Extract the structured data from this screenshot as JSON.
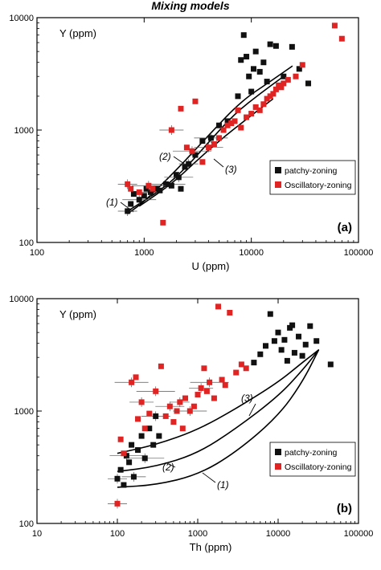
{
  "figure_title": "Mixing models",
  "colors": {
    "patchy": "#111111",
    "oscillatory": "#e02424",
    "curve": "#000000",
    "axis": "#000000"
  },
  "chart_data": [
    {
      "panel": "(a)",
      "type": "scatter",
      "title": "",
      "xlabel": "U (ppm)",
      "ylabel": "Y (ppm)",
      "xscale": "log",
      "yscale": "log",
      "xlim": [
        100,
        100000
      ],
      "ylim": [
        100,
        10000
      ],
      "xticks": [
        "100",
        "1000",
        "10000",
        "100000"
      ],
      "yticks": [
        "100",
        "1000",
        "10000"
      ],
      "legend_position": "right, lower-middle",
      "series": [
        {
          "name": "patchy-zoning",
          "marker": "square",
          "color": "#111111",
          "points": [
            [
              700,
              190
            ],
            [
              750,
              220
            ],
            [
              800,
              270
            ],
            [
              900,
              240
            ],
            [
              1000,
              260
            ],
            [
              1050,
              300
            ],
            [
              1150,
              280
            ],
            [
              1300,
              300
            ],
            [
              1400,
              290
            ],
            [
              1600,
              330
            ],
            [
              1800,
              320
            ],
            [
              2000,
              400
            ],
            [
              2100,
              380
            ],
            [
              2200,
              300
            ],
            [
              2400,
              470
            ],
            [
              2600,
              500
            ],
            [
              3000,
              600
            ],
            [
              3500,
              800
            ],
            [
              4200,
              850
            ],
            [
              5000,
              1100
            ],
            [
              6000,
              1200
            ],
            [
              7500,
              2000
            ],
            [
              8000,
              4200
            ],
            [
              8500,
              7000
            ],
            [
              9000,
              4500
            ],
            [
              9500,
              3000
            ],
            [
              10000,
              2200
            ],
            [
              10500,
              3500
            ],
            [
              11000,
              5000
            ],
            [
              12000,
              3300
            ],
            [
              13000,
              4000
            ],
            [
              14000,
              2700
            ],
            [
              15000,
              5800
            ],
            [
              17000,
              5600
            ],
            [
              20000,
              3000
            ],
            [
              24000,
              5500
            ],
            [
              28000,
              3500
            ],
            [
              34000,
              2600
            ]
          ]
        },
        {
          "name": "Oscillatory-zoning",
          "marker": "square",
          "color": "#e02424",
          "points": [
            [
              700,
              330
            ],
            [
              750,
              300
            ],
            [
              900,
              280
            ],
            [
              1100,
              320
            ],
            [
              1200,
              300
            ],
            [
              1500,
              150
            ],
            [
              1800,
              1000
            ],
            [
              2200,
              1550
            ],
            [
              2500,
              700
            ],
            [
              2800,
              650
            ],
            [
              3000,
              1800
            ],
            [
              3500,
              520
            ],
            [
              4000,
              700
            ],
            [
              4500,
              750
            ],
            [
              5000,
              850
            ],
            [
              5500,
              1000
            ],
            [
              6000,
              1100
            ],
            [
              6500,
              1150
            ],
            [
              7000,
              1200
            ],
            [
              7500,
              1500
            ],
            [
              8000,
              1050
            ],
            [
              9000,
              1300
            ],
            [
              10000,
              1400
            ],
            [
              11000,
              1600
            ],
            [
              12000,
              1500
            ],
            [
              13000,
              1700
            ],
            [
              14000,
              1900
            ],
            [
              15000,
              2000
            ],
            [
              16000,
              2100
            ],
            [
              17000,
              2300
            ],
            [
              18000,
              2500
            ],
            [
              19000,
              2400
            ],
            [
              20000,
              2600
            ],
            [
              22000,
              2800
            ],
            [
              26000,
              3000
            ],
            [
              30000,
              3800
            ],
            [
              60000,
              8500
            ],
            [
              70000,
              6500
            ]
          ]
        }
      ],
      "curves": [
        {
          "label": "(1)",
          "points": [
            [
              700,
              180
            ],
            [
              1000,
              230
            ],
            [
              2000,
              440
            ],
            [
              4000,
              900
            ],
            [
              8000,
              1800
            ],
            [
              15000,
              2700
            ],
            [
              24000,
              3700
            ]
          ]
        },
        {
          "label": "(2)",
          "points": [
            [
              700,
              190
            ],
            [
              1500,
              300
            ],
            [
              2500,
              470
            ],
            [
              4000,
              780
            ],
            [
              7000,
              1400
            ],
            [
              12000,
              2100
            ],
            [
              20000,
              3000
            ]
          ]
        },
        {
          "label": "(3)",
          "points": [
            [
              900,
              210
            ],
            [
              1800,
              330
            ],
            [
              3000,
              520
            ],
            [
              5000,
              800
            ],
            [
              9000,
              1250
            ],
            [
              16000,
              1900
            ]
          ]
        }
      ],
      "annotations": [
        "(1)",
        "(2)",
        "(3)"
      ]
    },
    {
      "panel": "(b)",
      "type": "scatter",
      "title": "",
      "xlabel": "Th (ppm)",
      "ylabel": "Y (ppm)",
      "xscale": "log",
      "yscale": "log",
      "xlim": [
        10,
        100000
      ],
      "ylim": [
        100,
        10000
      ],
      "xticks": [
        "10",
        "100",
        "1000",
        "10000",
        "100000"
      ],
      "yticks": [
        "100",
        "1000",
        "10000"
      ],
      "legend_position": "right, lower-middle",
      "series": [
        {
          "name": "patchy-zoning",
          "marker": "square",
          "color": "#111111",
          "points": [
            [
              100,
              250
            ],
            [
              110,
              300
            ],
            [
              120,
              220
            ],
            [
              130,
              400
            ],
            [
              140,
              350
            ],
            [
              150,
              500
            ],
            [
              160,
              260
            ],
            [
              180,
              450
            ],
            [
              200,
              600
            ],
            [
              220,
              380
            ],
            [
              250,
              700
            ],
            [
              280,
              500
            ],
            [
              300,
              900
            ],
            [
              330,
              600
            ],
            [
              5000,
              2700
            ],
            [
              6000,
              3200
            ],
            [
              7000,
              3800
            ],
            [
              8000,
              7300
            ],
            [
              9000,
              4200
            ],
            [
              10000,
              5000
            ],
            [
              11000,
              3500
            ],
            [
              12000,
              4300
            ],
            [
              13000,
              2800
            ],
            [
              14000,
              5500
            ],
            [
              15000,
              5800
            ],
            [
              16000,
              3300
            ],
            [
              18000,
              4600
            ],
            [
              20000,
              3100
            ],
            [
              22000,
              3900
            ],
            [
              25000,
              5700
            ],
            [
              30000,
              4200
            ],
            [
              45000,
              2600
            ]
          ]
        },
        {
          "name": "Oscillatory-zoning",
          "marker": "square",
          "color": "#e02424",
          "points": [
            [
              100,
              150
            ],
            [
              110,
              560
            ],
            [
              120,
              420
            ],
            [
              150,
              1800
            ],
            [
              170,
              2000
            ],
            [
              180,
              850
            ],
            [
              200,
              1200
            ],
            [
              220,
              700
            ],
            [
              250,
              950
            ],
            [
              300,
              1500
            ],
            [
              350,
              2500
            ],
            [
              400,
              900
            ],
            [
              450,
              1100
            ],
            [
              500,
              800
            ],
            [
              550,
              1000
            ],
            [
              600,
              1200
            ],
            [
              650,
              700
            ],
            [
              700,
              1300
            ],
            [
              800,
              1000
            ],
            [
              900,
              1100
            ],
            [
              1000,
              1400
            ],
            [
              1100,
              1600
            ],
            [
              1200,
              2400
            ],
            [
              1300,
              1500
            ],
            [
              1400,
              1800
            ],
            [
              1600,
              1300
            ],
            [
              1800,
              8500
            ],
            [
              2000,
              1900
            ],
            [
              2200,
              1700
            ],
            [
              2500,
              7500
            ],
            [
              3000,
              2200
            ],
            [
              3500,
              2600
            ],
            [
              4000,
              2400
            ]
          ]
        }
      ],
      "curves": [
        {
          "label": "(1)",
          "points": [
            [
              100,
              210
            ],
            [
              300,
              220
            ],
            [
              1000,
              270
            ],
            [
              3000,
              430
            ],
            [
              10000,
              900
            ],
            [
              20000,
              1800
            ],
            [
              32000,
              3500
            ]
          ]
        },
        {
          "label": "(2)",
          "points": [
            [
              100,
              290
            ],
            [
              300,
              320
            ],
            [
              1000,
              420
            ],
            [
              3000,
              700
            ],
            [
              10000,
              1350
            ],
            [
              20000,
              2300
            ],
            [
              32000,
              3500
            ]
          ]
        },
        {
          "label": "(3)",
          "points": [
            [
              100,
              420
            ],
            [
              300,
              500
            ],
            [
              1000,
              680
            ],
            [
              3000,
              1050
            ],
            [
              10000,
              1800
            ],
            [
              20000,
              2700
            ],
            [
              32000,
              3500
            ]
          ]
        }
      ],
      "annotations": [
        "(1)",
        "(2)",
        "(3)"
      ]
    }
  ]
}
